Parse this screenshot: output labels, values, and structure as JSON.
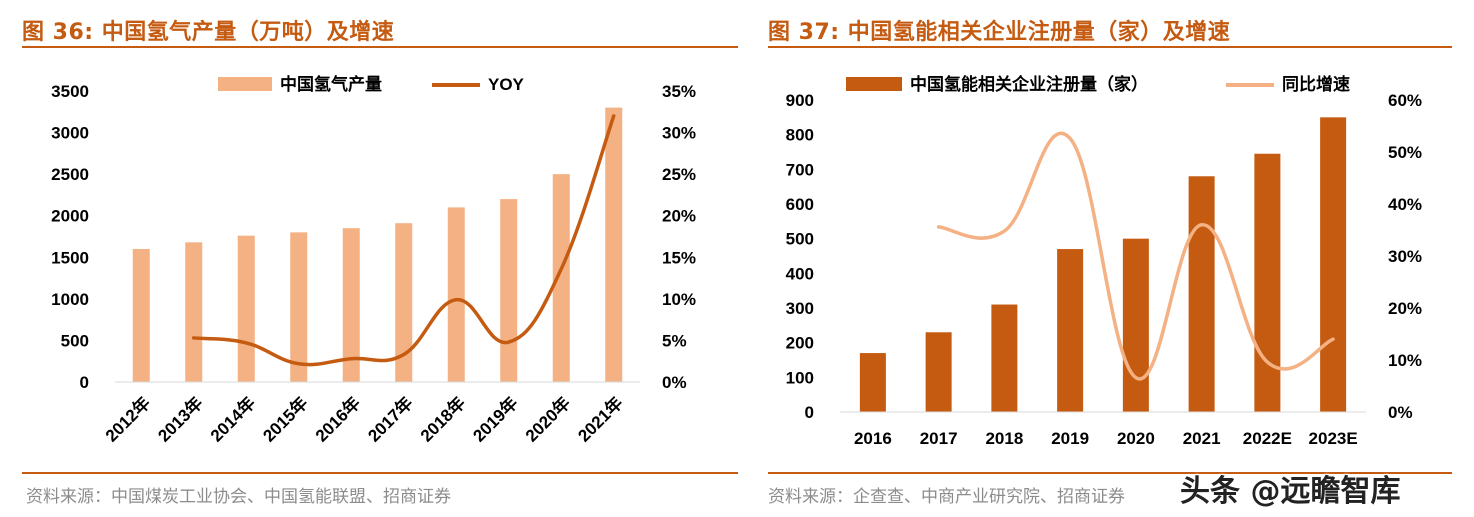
{
  "left": {
    "title": "图 36:  中国氢气产量（万吨）及增速",
    "source": "资料来源：中国煤炭工业协会、中国氢能联盟、招商证券"
  },
  "right": {
    "title": "图 37:  中国氢能相关企业注册量（家）及增速",
    "source": "资料来源：企查查、中商产业研究院、招商证券"
  },
  "watermark": "头条 @远瞻智库",
  "colors": {
    "accent": "#c55a11",
    "left_bar": "#f4b183",
    "left_line": "#c55a11",
    "right_bar": "#c55a11",
    "right_line": "#f4b183"
  },
  "chart_data": [
    {
      "type": "bar",
      "categories": [
        "2012年",
        "2013年",
        "2014年",
        "2015年",
        "2016年",
        "2017年",
        "2018年",
        "2019年",
        "2020年",
        "2021年"
      ],
      "series": [
        {
          "name": "中国氢气产量",
          "type": "bar",
          "axis": "left",
          "values": [
            1600,
            1680,
            1760,
            1800,
            1850,
            1910,
            2100,
            2200,
            2500,
            3300
          ]
        },
        {
          "name": "YOY",
          "type": "line",
          "axis": "right",
          "values": [
            null,
            5.3,
            4.7,
            2.2,
            2.8,
            3.3,
            9.9,
            4.8,
            13.6,
            32.0
          ]
        }
      ],
      "ylim_left": [
        0,
        3500
      ],
      "yticks_left": [
        "0",
        "500",
        "1000",
        "1500",
        "2000",
        "2500",
        "3000",
        "3500"
      ],
      "ylim_right": [
        0,
        35
      ],
      "yticks_right": [
        "0%",
        "5%",
        "10%",
        "15%",
        "20%",
        "25%",
        "30%",
        "35%"
      ],
      "legend": [
        "中国氢气产量",
        "YOY"
      ],
      "legend_position": "top"
    },
    {
      "type": "bar",
      "categories": [
        "2016",
        "2017",
        "2018",
        "2019",
        "2020",
        "2021",
        "2022E",
        "2023E"
      ],
      "series": [
        {
          "name": "中国氢能相关企业注册量（家）",
          "type": "bar",
          "axis": "left",
          "values": [
            170,
            230,
            310,
            470,
            500,
            680,
            745,
            850
          ]
        },
        {
          "name": "同比增速",
          "type": "line",
          "axis": "right",
          "values": [
            null,
            35.6,
            34.8,
            52.6,
            6.6,
            36.0,
            9.6,
            14.0
          ]
        }
      ],
      "ylim_left": [
        0,
        900
      ],
      "yticks_left": [
        "0",
        "100",
        "200",
        "300",
        "400",
        "500",
        "600",
        "700",
        "800",
        "900"
      ],
      "ylim_right": [
        0,
        60
      ],
      "yticks_right": [
        "0%",
        "10%",
        "20%",
        "30%",
        "40%",
        "50%",
        "60%"
      ],
      "legend": [
        "中国氢能相关企业注册量（家）",
        "同比增速"
      ],
      "legend_position": "top"
    }
  ]
}
